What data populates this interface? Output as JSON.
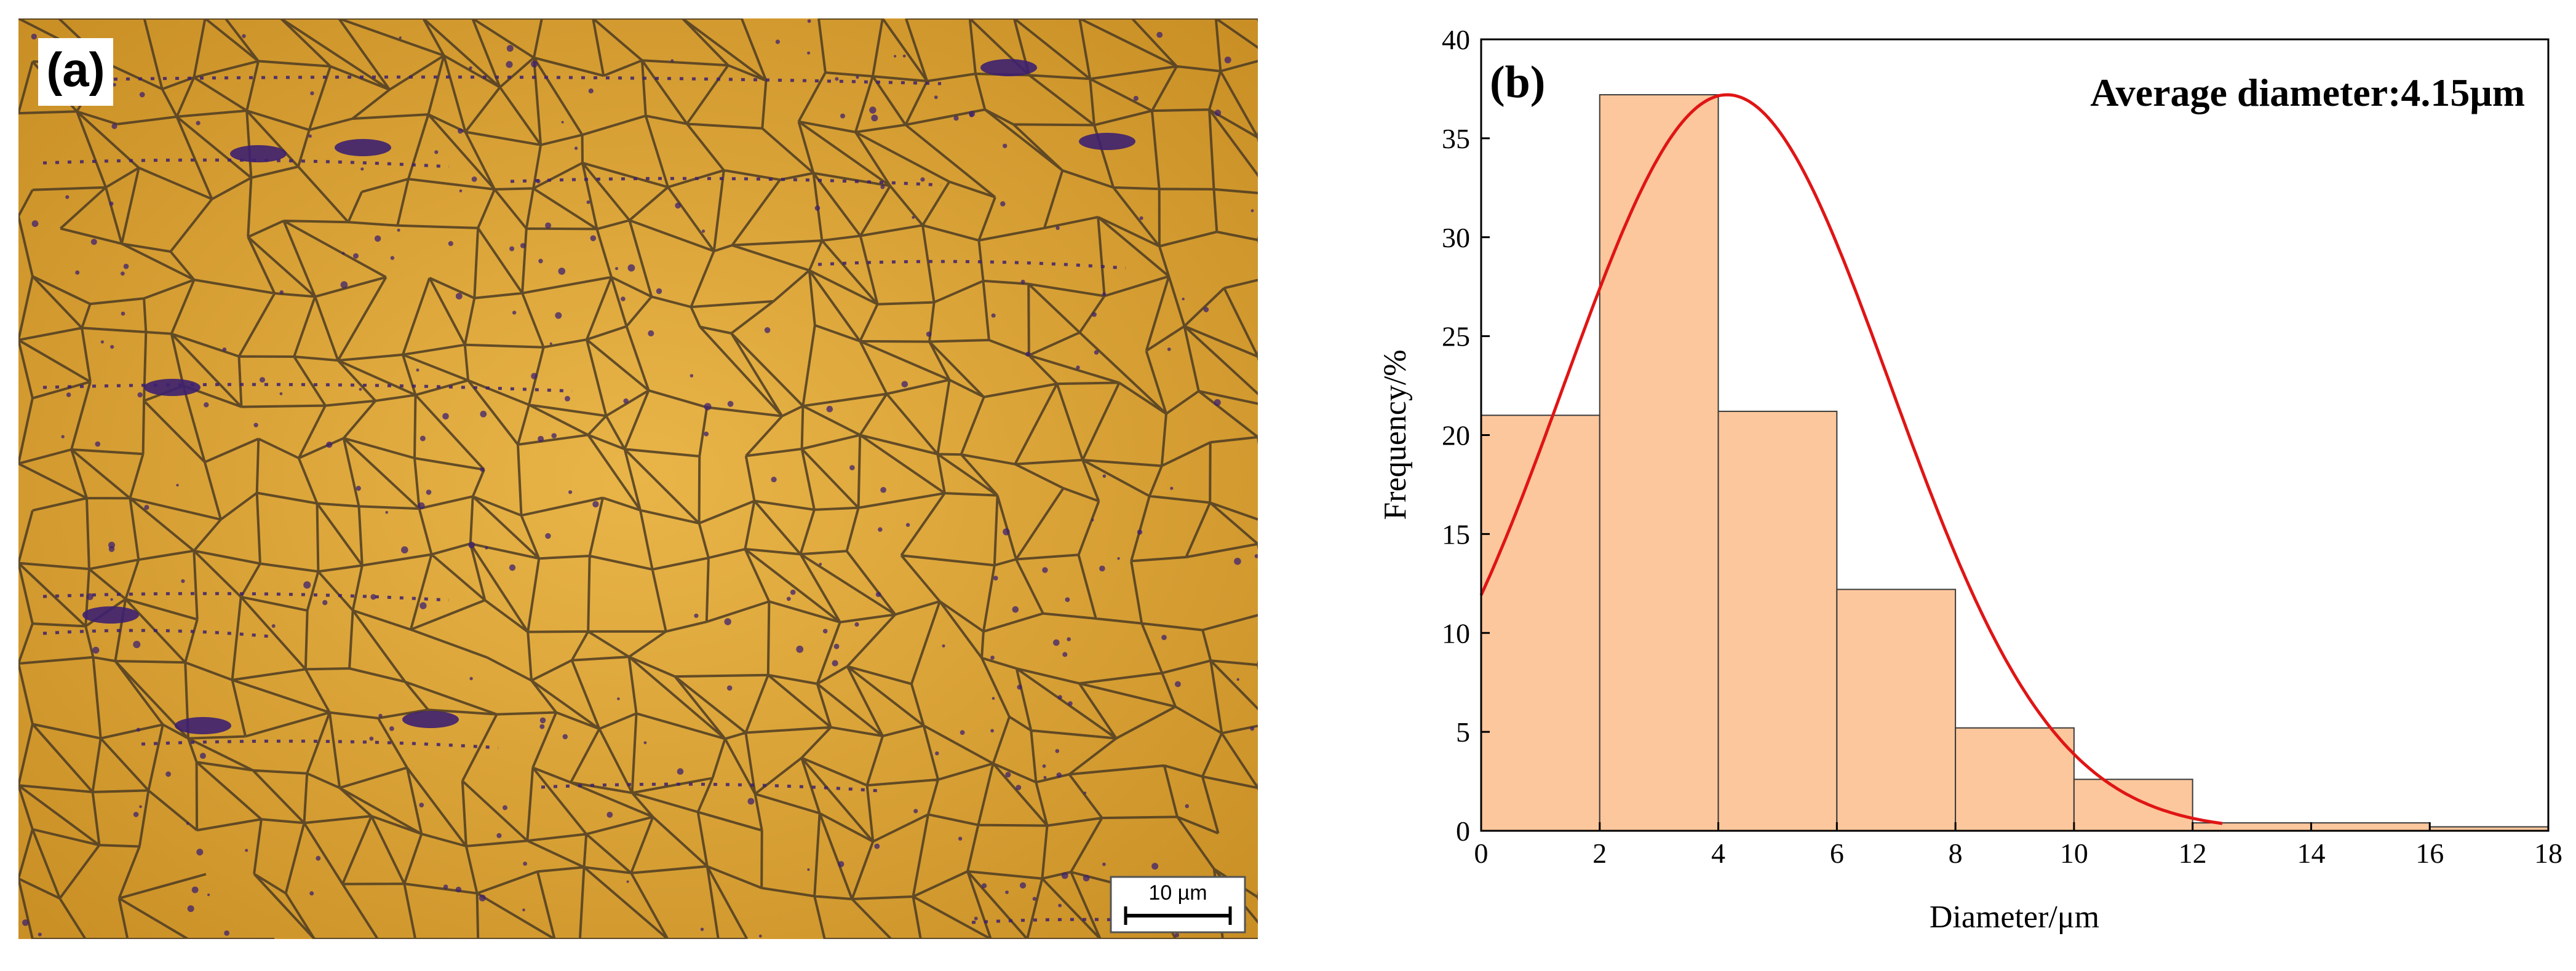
{
  "panel_a": {
    "label": "(a)",
    "scale_bar_label": "10 µm",
    "colors": {
      "background": "#dca331",
      "grain_boundary": "#4c3b22",
      "inclusion": "#3d2070"
    }
  },
  "chart_data": {
    "type": "bar",
    "panel_label": "(b)",
    "annotation": "Average diameter:4.15μm",
    "xlabel": "Diameter/μm",
    "ylabel": "Frequency/%",
    "xlim": [
      0,
      18
    ],
    "ylim": [
      0,
      40
    ],
    "x_ticks": [
      0,
      2,
      4,
      6,
      8,
      10,
      12,
      14,
      16,
      18
    ],
    "y_ticks": [
      0,
      5,
      10,
      15,
      20,
      25,
      30,
      35,
      40
    ],
    "bins": [
      {
        "x0": 0,
        "x1": 2,
        "value": 21
      },
      {
        "x0": 2,
        "x1": 4,
        "value": 37.2
      },
      {
        "x0": 4,
        "x1": 6,
        "value": 21.2
      },
      {
        "x0": 6,
        "x1": 8,
        "value": 12.2
      },
      {
        "x0": 8,
        "x1": 10,
        "value": 5.2
      },
      {
        "x0": 10,
        "x1": 12,
        "value": 2.6
      },
      {
        "x0": 12,
        "x1": 14,
        "value": 0.4
      },
      {
        "x0": 14,
        "x1": 16,
        "value": 0.4
      },
      {
        "x0": 16,
        "x1": 18,
        "value": 0.2
      }
    ],
    "fit": {
      "type": "normal",
      "mean": 4.15,
      "sd": 2.75,
      "peak": 37.2,
      "x_range": [
        0,
        12.5
      ]
    },
    "colors": {
      "bar_fill": "#fcc79c",
      "bar_stroke": "#3a3a3a",
      "fit_line": "#e01515"
    }
  }
}
